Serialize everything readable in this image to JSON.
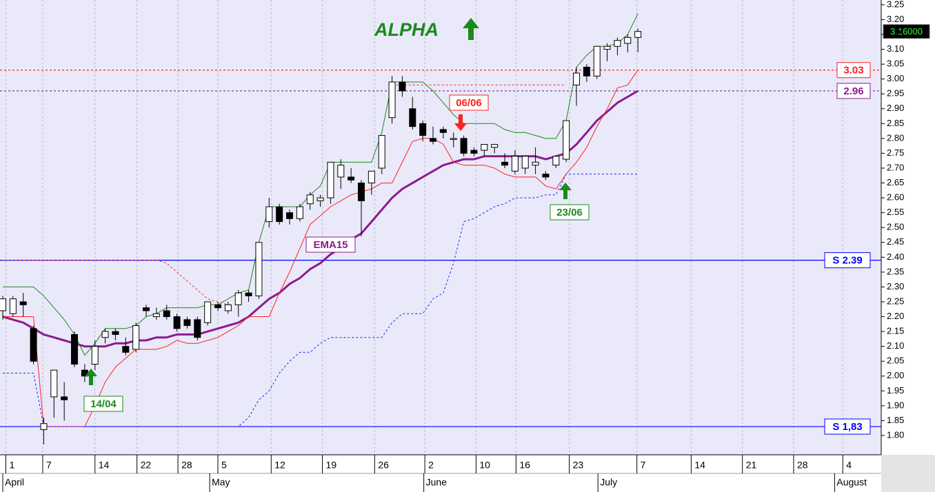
{
  "chart_data": {
    "type": "candlestick",
    "title": "ALPHA",
    "title_color": "#1a8a1a",
    "open": [
      2.22,
      2.21,
      2.25,
      2.16,
      1.82,
      1.93,
      1.93,
      2.14,
      2.02,
      2.04,
      2.13,
      2.15,
      2.1,
      2.09,
      2.23,
      2.2,
      2.22,
      2.2,
      2.19,
      2.19,
      2.18,
      2.24,
      2.22,
      2.24,
      2.28,
      2.27,
      2.52,
      2.57,
      2.55,
      2.53,
      2.58,
      2.59,
      2.6,
      2.67,
      2.67,
      2.65,
      2.65,
      2.7,
      2.87,
      2.99,
      2.9,
      2.85,
      2.8,
      2.83,
      2.8,
      2.8,
      2.76,
      2.76,
      2.77,
      2.72,
      2.69,
      2.7,
      2.71,
      2.68,
      2.71,
      2.73,
      2.98,
      3.04,
      3.01,
      3.1,
      3.11,
      3.12,
      3.14
    ],
    "high": [
      2.27,
      2.27,
      2.28,
      2.17,
      1.86,
      2.02,
      1.98,
      2.15,
      2.04,
      2.12,
      2.16,
      2.16,
      2.13,
      2.18,
      2.24,
      2.23,
      2.24,
      2.21,
      2.2,
      2.2,
      2.25,
      2.25,
      2.25,
      2.29,
      2.29,
      2.45,
      2.6,
      2.58,
      2.56,
      2.58,
      2.62,
      2.61,
      2.72,
      2.73,
      2.7,
      2.66,
      2.69,
      2.81,
      3.01,
      3.01,
      2.94,
      2.86,
      2.84,
      2.84,
      2.82,
      2.81,
      2.77,
      2.78,
      2.78,
      2.75,
      2.76,
      2.74,
      2.77,
      2.69,
      2.74,
      2.86,
      3.04,
      3.05,
      3.11,
      3.12,
      3.14,
      3.15,
      3.17
    ],
    "low": [
      2.19,
      2.2,
      2.2,
      2.04,
      1.77,
      1.86,
      1.85,
      2.03,
      1.98,
      2.02,
      2.11,
      2.12,
      2.07,
      2.08,
      2.2,
      2.19,
      2.19,
      2.15,
      2.16,
      2.12,
      2.17,
      2.22,
      2.21,
      2.2,
      2.25,
      2.26,
      2.5,
      2.51,
      2.51,
      2.52,
      2.56,
      2.57,
      2.58,
      2.63,
      2.65,
      2.47,
      2.61,
      2.68,
      2.85,
      2.94,
      2.83,
      2.79,
      2.78,
      2.8,
      2.77,
      2.74,
      2.74,
      2.74,
      2.75,
      2.7,
      2.68,
      2.68,
      2.68,
      2.66,
      2.7,
      2.72,
      2.91,
      2.99,
      3.0,
      3.06,
      3.08,
      3.09,
      3.09
    ],
    "close": [
      2.26,
      2.26,
      2.24,
      2.05,
      1.84,
      2.02,
      1.92,
      2.04,
      2.0,
      2.1,
      2.15,
      2.14,
      2.08,
      2.17,
      2.22,
      2.21,
      2.2,
      2.16,
      2.17,
      2.13,
      2.25,
      2.23,
      2.24,
      2.28,
      2.27,
      2.45,
      2.57,
      2.52,
      2.53,
      2.57,
      2.61,
      2.6,
      2.72,
      2.71,
      2.66,
      2.59,
      2.69,
      2.81,
      2.99,
      2.96,
      2.84,
      2.81,
      2.79,
      2.82,
      2.8,
      2.75,
      2.75,
      2.78,
      2.78,
      2.71,
      2.74,
      2.74,
      2.72,
      2.67,
      2.74,
      2.86,
      3.02,
      3.01,
      3.11,
      3.11,
      3.13,
      3.14,
      3.16
    ],
    "up_color": "#ffffff",
    "down_color": "#000000",
    "series": [
      {
        "name": "EMA15",
        "color": "#8b1a8b",
        "width": 3,
        "dashed": false,
        "values": [
          2.2,
          2.19,
          2.18,
          2.16,
          2.14,
          2.13,
          2.12,
          2.11,
          2.1,
          2.1,
          2.1,
          2.11,
          2.11,
          2.12,
          2.12,
          2.13,
          2.13,
          2.14,
          2.14,
          2.14,
          2.15,
          2.16,
          2.17,
          2.18,
          2.2,
          2.23,
          2.26,
          2.28,
          2.31,
          2.33,
          2.36,
          2.38,
          2.41,
          2.43,
          2.46,
          2.48,
          2.52,
          2.56,
          2.6,
          2.63,
          2.65,
          2.67,
          2.69,
          2.71,
          2.72,
          2.73,
          2.73,
          2.74,
          2.74,
          2.74,
          2.74,
          2.74,
          2.74,
          2.73,
          2.74,
          2.75,
          2.78,
          2.82,
          2.86,
          2.89,
          2.92,
          2.94,
          2.96
        ]
      },
      {
        "color": "#1a8a1a",
        "width": 1,
        "dashed": false,
        "values": [
          2.3,
          2.3,
          2.3,
          2.3,
          2.27,
          2.23,
          2.19,
          2.14,
          2.07,
          2.11,
          2.16,
          2.16,
          2.16,
          2.17,
          2.2,
          2.21,
          2.23,
          2.23,
          2.23,
          2.23,
          2.24,
          2.24,
          2.26,
          2.28,
          2.29,
          2.45,
          2.57,
          2.57,
          2.57,
          2.57,
          2.61,
          2.64,
          2.72,
          2.72,
          2.72,
          2.72,
          2.72,
          2.82,
          2.99,
          2.99,
          2.99,
          2.99,
          2.96,
          2.92,
          2.88,
          2.85,
          2.85,
          2.85,
          2.85,
          2.83,
          2.82,
          2.82,
          2.81,
          2.8,
          2.8,
          2.86,
          3.04,
          3.08,
          3.11,
          3.11,
          3.12,
          3.15,
          3.22
        ]
      },
      {
        "color": "#ff2020",
        "width": 1,
        "dashed": false,
        "values": [
          2.2,
          2.2,
          2.2,
          2.2,
          1.83,
          1.83,
          1.83,
          1.83,
          1.83,
          1.9,
          1.98,
          2.03,
          2.06,
          2.09,
          2.09,
          2.09,
          2.1,
          2.12,
          2.11,
          2.11,
          2.12,
          2.13,
          2.15,
          2.17,
          2.2,
          2.2,
          2.2,
          2.28,
          2.35,
          2.43,
          2.51,
          2.54,
          2.57,
          2.59,
          2.61,
          2.62,
          2.63,
          2.65,
          2.65,
          2.72,
          2.79,
          2.8,
          2.8,
          2.78,
          2.72,
          2.71,
          2.71,
          2.71,
          2.7,
          2.68,
          2.67,
          2.67,
          2.67,
          2.64,
          2.63,
          2.68,
          2.72,
          2.77,
          2.84,
          2.9,
          2.97,
          2.98,
          3.03
        ]
      },
      {
        "color": "#ff2020",
        "width": 1,
        "dashed": true,
        "values": [
          2.39,
          2.39,
          2.39,
          2.39,
          2.39,
          2.39,
          2.39,
          2.39,
          2.39,
          2.39,
          2.39,
          2.39,
          2.39,
          2.39,
          2.39,
          2.39,
          2.38,
          2.35,
          2.32,
          2.29,
          2.26,
          2.25,
          2.24,
          null,
          null,
          null,
          null,
          null,
          null,
          null,
          null,
          null,
          null,
          null,
          null,
          null,
          null,
          null,
          2.98,
          2.98,
          2.98,
          2.98,
          2.98,
          2.98,
          2.98,
          2.98,
          2.98,
          2.98,
          2.98,
          2.98,
          2.98,
          2.98,
          2.98,
          2.98,
          2.98,
          2.98,
          null,
          null,
          null,
          null,
          null,
          null,
          null
        ]
      },
      {
        "color": "#2020ff",
        "width": 1,
        "dashed": true,
        "values": [
          2.01,
          2.01,
          2.01,
          2.01,
          1.83,
          1.83,
          1.83,
          1.83,
          1.83,
          1.83,
          1.83,
          1.83,
          1.83,
          1.83,
          1.83,
          1.83,
          1.83,
          1.83,
          1.83,
          1.83,
          1.83,
          1.83,
          1.83,
          1.83,
          1.86,
          1.92,
          1.95,
          2.01,
          2.05,
          2.08,
          2.08,
          2.11,
          2.13,
          2.13,
          2.13,
          2.13,
          2.13,
          2.13,
          2.18,
          2.21,
          2.21,
          2.21,
          2.26,
          2.28,
          2.38,
          2.52,
          2.53,
          2.55,
          2.57,
          2.58,
          2.6,
          2.6,
          2.6,
          2.61,
          2.61,
          2.68,
          2.68,
          2.68,
          2.68,
          2.68,
          2.68,
          2.68,
          2.68
        ]
      }
    ],
    "levels": [
      {
        "value": 3.03,
        "label": "3.03",
        "color": "#ff2020",
        "dashed": true
      },
      {
        "value": 2.96,
        "label": "2.96",
        "color": "#8b1a8b",
        "dashed": true
      },
      {
        "value": 2.39,
        "label": "S 2.39",
        "color": "#0000ff",
        "dashed": false
      },
      {
        "value": 1.83,
        "label": "S 1,83",
        "color": "#0000ff",
        "dashed": false
      }
    ],
    "signals": [
      {
        "label": "14/04",
        "direction": "up",
        "color": "#1a8a1a"
      },
      {
        "label": "06/06",
        "direction": "down",
        "color": "#ff2020"
      },
      {
        "label": "23/06",
        "direction": "up",
        "color": "#1a8a1a"
      }
    ],
    "last_price": {
      "value": 3.16,
      "label": "3.16000"
    },
    "xlim": [
      -0.27,
      85.75
    ],
    "xticks": [
      {
        "value": 0.3,
        "label": "1"
      },
      {
        "value": 3.9,
        "label": "7"
      },
      {
        "value": 9.0,
        "label": "14"
      },
      {
        "value": 13.1,
        "label": "22"
      },
      {
        "value": 17.1,
        "label": "28"
      },
      {
        "value": 21.0,
        "label": "5"
      },
      {
        "value": 26.2,
        "label": "12"
      },
      {
        "value": 31.2,
        "label": "19"
      },
      {
        "value": 36.3,
        "label": "26"
      },
      {
        "value": 41.2,
        "label": "2"
      },
      {
        "value": 46.2,
        "label": "10"
      },
      {
        "value": 50.1,
        "label": "16"
      },
      {
        "value": 55.3,
        "label": "23"
      },
      {
        "value": 61.9,
        "label": "7"
      },
      {
        "value": 67.2,
        "label": "14"
      },
      {
        "value": 72.2,
        "label": "21"
      },
      {
        "value": 77.2,
        "label": "28"
      },
      {
        "value": 82.0,
        "label": "4"
      }
    ],
    "months": [
      {
        "value": 0.0,
        "label": "April"
      },
      {
        "value": 20.2,
        "label": "May"
      },
      {
        "value": 41.1,
        "label": "June"
      },
      {
        "value": 58.1,
        "label": "July"
      },
      {
        "value": 81.2,
        "label": "August"
      }
    ],
    "ylim": [
      1.735,
      3.266
    ],
    "yticks": [
      {
        "value": 1.8,
        "label": "1.80"
      },
      {
        "value": 1.85,
        "label": "1.85"
      },
      {
        "value": 1.9,
        "label": "1.90"
      },
      {
        "value": 1.95,
        "label": "1.95"
      },
      {
        "value": 2.0,
        "label": "2.00"
      },
      {
        "value": 2.05,
        "label": "2.05"
      },
      {
        "value": 2.1,
        "label": "2.10"
      },
      {
        "value": 2.15,
        "label": "2.15"
      },
      {
        "value": 2.2,
        "label": "2.20"
      },
      {
        "value": 2.25,
        "label": "2.25"
      },
      {
        "value": 2.3,
        "label": "2.30"
      },
      {
        "value": 2.35,
        "label": "2.35"
      },
      {
        "value": 2.4,
        "label": "2.40"
      },
      {
        "value": 2.45,
        "label": "2.45"
      },
      {
        "value": 2.5,
        "label": "2.50"
      },
      {
        "value": 2.55,
        "label": "2.55"
      },
      {
        "value": 2.6,
        "label": "2.60"
      },
      {
        "value": 2.65,
        "label": "2.65"
      },
      {
        "value": 2.7,
        "label": "2.70"
      },
      {
        "value": 2.75,
        "label": "2.75"
      },
      {
        "value": 2.8,
        "label": "2.80"
      },
      {
        "value": 2.85,
        "label": "2.85"
      },
      {
        "value": 2.9,
        "label": "2.90"
      },
      {
        "value": 2.95,
        "label": "2.95"
      },
      {
        "value": 3.0,
        "label": "3.00"
      },
      {
        "value": 3.05,
        "label": "3.05"
      },
      {
        "value": 3.1,
        "label": "3.10"
      },
      {
        "value": 3.15,
        "label": "3.15"
      },
      {
        "value": 3.2,
        "label": "3.20"
      },
      {
        "value": 3.25,
        "label": "3.25"
      }
    ],
    "grid": true
  }
}
